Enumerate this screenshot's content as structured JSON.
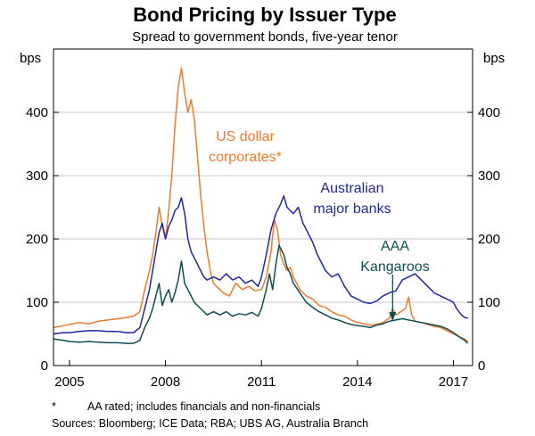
{
  "chart_data": {
    "type": "line",
    "title": "Bond Pricing by Issuer Type",
    "subtitle": "Spread to government bonds, five-year tenor",
    "ylabel_left": "bps",
    "ylabel_right": "bps",
    "ylim": [
      0,
      500
    ],
    "xlim": [
      2004.5,
      2017.6
    ],
    "yticks": [
      0,
      100,
      200,
      300,
      400
    ],
    "xticks": [
      {
        "value": 2005,
        "label": "2005"
      },
      {
        "value": 2008,
        "label": "2008"
      },
      {
        "value": 2011,
        "label": "2011"
      },
      {
        "value": 2014,
        "label": "2014"
      },
      {
        "value": 2017,
        "label": "2017"
      }
    ],
    "series": [
      {
        "name": "US dollar corporates*",
        "label_lines": [
          "US dollar",
          "corporates*"
        ],
        "color": "#f07a2e",
        "points": [
          [
            2004.5,
            60
          ],
          [
            2004.8,
            63
          ],
          [
            2005.0,
            65
          ],
          [
            2005.3,
            68
          ],
          [
            2005.6,
            66
          ],
          [
            2005.9,
            70
          ],
          [
            2006.2,
            72
          ],
          [
            2006.5,
            74
          ],
          [
            2006.8,
            76
          ],
          [
            2007.0,
            78
          ],
          [
            2007.2,
            85
          ],
          [
            2007.35,
            120
          ],
          [
            2007.5,
            150
          ],
          [
            2007.6,
            175
          ],
          [
            2007.7,
            210
          ],
          [
            2007.8,
            250
          ],
          [
            2007.9,
            220
          ],
          [
            2008.0,
            200
          ],
          [
            2008.1,
            245
          ],
          [
            2008.2,
            300
          ],
          [
            2008.3,
            380
          ],
          [
            2008.4,
            440
          ],
          [
            2008.5,
            470
          ],
          [
            2008.6,
            430
          ],
          [
            2008.7,
            400
          ],
          [
            2008.8,
            420
          ],
          [
            2008.9,
            390
          ],
          [
            2009.0,
            330
          ],
          [
            2009.1,
            270
          ],
          [
            2009.2,
            220
          ],
          [
            2009.3,
            180
          ],
          [
            2009.4,
            150
          ],
          [
            2009.5,
            130
          ],
          [
            2009.6,
            125
          ],
          [
            2009.8,
            115
          ],
          [
            2010.0,
            110
          ],
          [
            2010.2,
            130
          ],
          [
            2010.4,
            120
          ],
          [
            2010.6,
            125
          ],
          [
            2010.8,
            118
          ],
          [
            2011.0,
            120
          ],
          [
            2011.15,
            140
          ],
          [
            2011.3,
            180
          ],
          [
            2011.4,
            230
          ],
          [
            2011.5,
            215
          ],
          [
            2011.6,
            175
          ],
          [
            2011.7,
            160
          ],
          [
            2011.8,
            150
          ],
          [
            2011.9,
            155
          ],
          [
            2012.0,
            140
          ],
          [
            2012.2,
            120
          ],
          [
            2012.4,
            110
          ],
          [
            2012.6,
            105
          ],
          [
            2012.8,
            95
          ],
          [
            2013.0,
            92
          ],
          [
            2013.2,
            85
          ],
          [
            2013.4,
            80
          ],
          [
            2013.6,
            78
          ],
          [
            2013.8,
            72
          ],
          [
            2014.0,
            68
          ],
          [
            2014.2,
            66
          ],
          [
            2014.4,
            64
          ],
          [
            2014.6,
            65
          ],
          [
            2014.8,
            68
          ],
          [
            2015.0,
            75
          ],
          [
            2015.1,
            90
          ],
          [
            2015.2,
            80
          ],
          [
            2015.35,
            85
          ],
          [
            2015.5,
            90
          ],
          [
            2015.6,
            108
          ],
          [
            2015.7,
            80
          ],
          [
            2015.8,
            70
          ],
          [
            2016.0,
            68
          ],
          [
            2016.2,
            65
          ],
          [
            2016.4,
            62
          ],
          [
            2016.6,
            60
          ],
          [
            2016.8,
            55
          ],
          [
            2017.0,
            50
          ],
          [
            2017.2,
            45
          ],
          [
            2017.35,
            42
          ],
          [
            2017.45,
            38
          ]
        ]
      },
      {
        "name": "Australian major banks",
        "label_lines": [
          "Australian",
          "major banks"
        ],
        "color": "#1f2a9c",
        "points": [
          [
            2004.5,
            50
          ],
          [
            2004.8,
            52
          ],
          [
            2005.0,
            52
          ],
          [
            2005.3,
            54
          ],
          [
            2005.6,
            55
          ],
          [
            2005.9,
            55
          ],
          [
            2006.2,
            54
          ],
          [
            2006.5,
            54
          ],
          [
            2006.8,
            52
          ],
          [
            2007.0,
            52
          ],
          [
            2007.2,
            60
          ],
          [
            2007.35,
            90
          ],
          [
            2007.5,
            120
          ],
          [
            2007.6,
            150
          ],
          [
            2007.7,
            180
          ],
          [
            2007.8,
            210
          ],
          [
            2007.9,
            225
          ],
          [
            2008.0,
            200
          ],
          [
            2008.1,
            220
          ],
          [
            2008.2,
            230
          ],
          [
            2008.3,
            245
          ],
          [
            2008.4,
            250
          ],
          [
            2008.5,
            265
          ],
          [
            2008.6,
            240
          ],
          [
            2008.7,
            200
          ],
          [
            2008.8,
            180
          ],
          [
            2008.9,
            170
          ],
          [
            2009.0,
            160
          ],
          [
            2009.1,
            150
          ],
          [
            2009.2,
            140
          ],
          [
            2009.3,
            135
          ],
          [
            2009.5,
            140
          ],
          [
            2009.7,
            135
          ],
          [
            2009.9,
            145
          ],
          [
            2010.1,
            135
          ],
          [
            2010.3,
            140
          ],
          [
            2010.5,
            130
          ],
          [
            2010.7,
            135
          ],
          [
            2010.9,
            125
          ],
          [
            2011.0,
            140
          ],
          [
            2011.15,
            175
          ],
          [
            2011.3,
            215
          ],
          [
            2011.45,
            240
          ],
          [
            2011.6,
            255
          ],
          [
            2011.7,
            268
          ],
          [
            2011.8,
            250
          ],
          [
            2011.9,
            245
          ],
          [
            2012.0,
            240
          ],
          [
            2012.15,
            250
          ],
          [
            2012.3,
            225
          ],
          [
            2012.45,
            210
          ],
          [
            2012.6,
            195
          ],
          [
            2012.75,
            175
          ],
          [
            2012.9,
            160
          ],
          [
            2013.0,
            150
          ],
          [
            2013.2,
            140
          ],
          [
            2013.4,
            145
          ],
          [
            2013.6,
            125
          ],
          [
            2013.8,
            110
          ],
          [
            2014.0,
            105
          ],
          [
            2014.2,
            100
          ],
          [
            2014.4,
            98
          ],
          [
            2014.6,
            102
          ],
          [
            2014.8,
            110
          ],
          [
            2015.0,
            115
          ],
          [
            2015.2,
            118
          ],
          [
            2015.4,
            135
          ],
          [
            2015.6,
            140
          ],
          [
            2015.8,
            145
          ],
          [
            2016.0,
            135
          ],
          [
            2016.2,
            125
          ],
          [
            2016.4,
            115
          ],
          [
            2016.6,
            110
          ],
          [
            2016.8,
            105
          ],
          [
            2017.0,
            100
          ],
          [
            2017.1,
            90
          ],
          [
            2017.25,
            80
          ],
          [
            2017.35,
            76
          ],
          [
            2017.45,
            75
          ]
        ]
      },
      {
        "name": "AAA Kangaroos",
        "label_lines": [
          "AAA",
          "Kangaroos"
        ],
        "color": "#0e4f50",
        "points": [
          [
            2004.5,
            42
          ],
          [
            2004.8,
            40
          ],
          [
            2005.0,
            38
          ],
          [
            2005.3,
            37
          ],
          [
            2005.6,
            38
          ],
          [
            2005.9,
            37
          ],
          [
            2006.2,
            36
          ],
          [
            2006.5,
            36
          ],
          [
            2006.8,
            35
          ],
          [
            2007.0,
            35
          ],
          [
            2007.2,
            40
          ],
          [
            2007.35,
            60
          ],
          [
            2007.5,
            75
          ],
          [
            2007.6,
            90
          ],
          [
            2007.7,
            110
          ],
          [
            2007.8,
            130
          ],
          [
            2007.9,
            95
          ],
          [
            2008.0,
            110
          ],
          [
            2008.1,
            120
          ],
          [
            2008.2,
            100
          ],
          [
            2008.3,
            115
          ],
          [
            2008.4,
            135
          ],
          [
            2008.5,
            165
          ],
          [
            2008.6,
            130
          ],
          [
            2008.7,
            120
          ],
          [
            2008.8,
            110
          ],
          [
            2008.9,
            100
          ],
          [
            2009.0,
            95
          ],
          [
            2009.1,
            90
          ],
          [
            2009.3,
            80
          ],
          [
            2009.5,
            85
          ],
          [
            2009.7,
            80
          ],
          [
            2009.9,
            85
          ],
          [
            2010.1,
            78
          ],
          [
            2010.3,
            82
          ],
          [
            2010.5,
            80
          ],
          [
            2010.7,
            84
          ],
          [
            2010.9,
            78
          ],
          [
            2011.0,
            90
          ],
          [
            2011.15,
            120
          ],
          [
            2011.25,
            145
          ],
          [
            2011.35,
            120
          ],
          [
            2011.45,
            160
          ],
          [
            2011.55,
            190
          ],
          [
            2011.7,
            175
          ],
          [
            2011.8,
            155
          ],
          [
            2011.9,
            145
          ],
          [
            2012.0,
            130
          ],
          [
            2012.2,
            115
          ],
          [
            2012.4,
            100
          ],
          [
            2012.6,
            92
          ],
          [
            2012.8,
            85
          ],
          [
            2013.0,
            80
          ],
          [
            2013.2,
            75
          ],
          [
            2013.4,
            72
          ],
          [
            2013.6,
            68
          ],
          [
            2013.8,
            65
          ],
          [
            2014.0,
            63
          ],
          [
            2014.2,
            62
          ],
          [
            2014.4,
            60
          ],
          [
            2014.6,
            64
          ],
          [
            2014.8,
            66
          ],
          [
            2015.0,
            70
          ],
          [
            2015.2,
            72
          ],
          [
            2015.4,
            74
          ],
          [
            2015.6,
            72
          ],
          [
            2015.8,
            70
          ],
          [
            2016.0,
            68
          ],
          [
            2016.2,
            66
          ],
          [
            2016.4,
            64
          ],
          [
            2016.6,
            62
          ],
          [
            2016.8,
            58
          ],
          [
            2017.0,
            52
          ],
          [
            2017.2,
            45
          ],
          [
            2017.35,
            40
          ],
          [
            2017.45,
            35
          ]
        ]
      }
    ],
    "annotation_arrow": {
      "series": "AAA Kangaroos",
      "x": 2015.1
    }
  },
  "notes": {
    "footnote_marker": "*",
    "footnote_text": "AA rated; includes financials and non-financials",
    "sources": "Sources:  Bloomberg; ICE Data; RBA; UBS AG, Australia Branch"
  }
}
